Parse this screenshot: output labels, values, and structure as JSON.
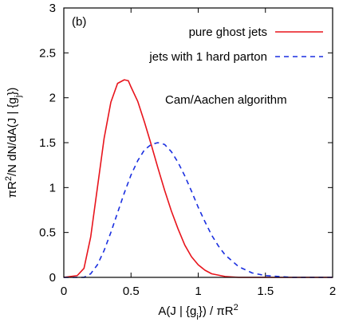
{
  "chart_data": {
    "type": "line",
    "panel_label": "(b)",
    "xlabel": "A(J | {g_i}) / πR²",
    "ylabel": "πR²/N dN/dA(J | {g_j})",
    "xlim": [
      0,
      2
    ],
    "ylim": [
      0,
      3
    ],
    "xticks": [
      "0",
      "0.5",
      "1",
      "1.5",
      "2"
    ],
    "yticks": [
      "0",
      "0.5",
      "1",
      "1.5",
      "2",
      "2.5",
      "3"
    ],
    "annotation": "Cam/Aachen algorithm",
    "legend_position": "top-right",
    "grid": false,
    "series": [
      {
        "name": "pure ghost jets",
        "color": "#e8141c",
        "style": "solid",
        "x": [
          0,
          0.1,
          0.15,
          0.2,
          0.25,
          0.3,
          0.35,
          0.4,
          0.45,
          0.48,
          0.5,
          0.55,
          0.6,
          0.65,
          0.7,
          0.75,
          0.8,
          0.85,
          0.9,
          0.95,
          1.0,
          1.05,
          1.1,
          1.2,
          1.3,
          1.5,
          2.0
        ],
        "y": [
          0,
          0.02,
          0.1,
          0.45,
          1.0,
          1.55,
          1.95,
          2.16,
          2.2,
          2.19,
          2.12,
          1.96,
          1.73,
          1.48,
          1.22,
          0.97,
          0.74,
          0.54,
          0.36,
          0.23,
          0.14,
          0.08,
          0.04,
          0.01,
          0.0,
          0.0,
          0.0
        ]
      },
      {
        "name": "jets with 1 hard parton",
        "color": "#1a2fe0",
        "style": "dashed",
        "x": [
          0,
          0.15,
          0.2,
          0.25,
          0.3,
          0.35,
          0.4,
          0.45,
          0.5,
          0.55,
          0.6,
          0.65,
          0.7,
          0.75,
          0.8,
          0.85,
          0.9,
          0.95,
          1.0,
          1.05,
          1.1,
          1.15,
          1.2,
          1.3,
          1.4,
          1.5,
          1.6,
          1.7,
          1.8,
          2.0
        ],
        "y": [
          0,
          0.0,
          0.04,
          0.14,
          0.3,
          0.5,
          0.72,
          0.94,
          1.14,
          1.3,
          1.42,
          1.48,
          1.5,
          1.48,
          1.4,
          1.28,
          1.13,
          0.96,
          0.78,
          0.62,
          0.47,
          0.35,
          0.25,
          0.12,
          0.05,
          0.02,
          0.01,
          0.0,
          0.0,
          0.0
        ]
      }
    ]
  }
}
